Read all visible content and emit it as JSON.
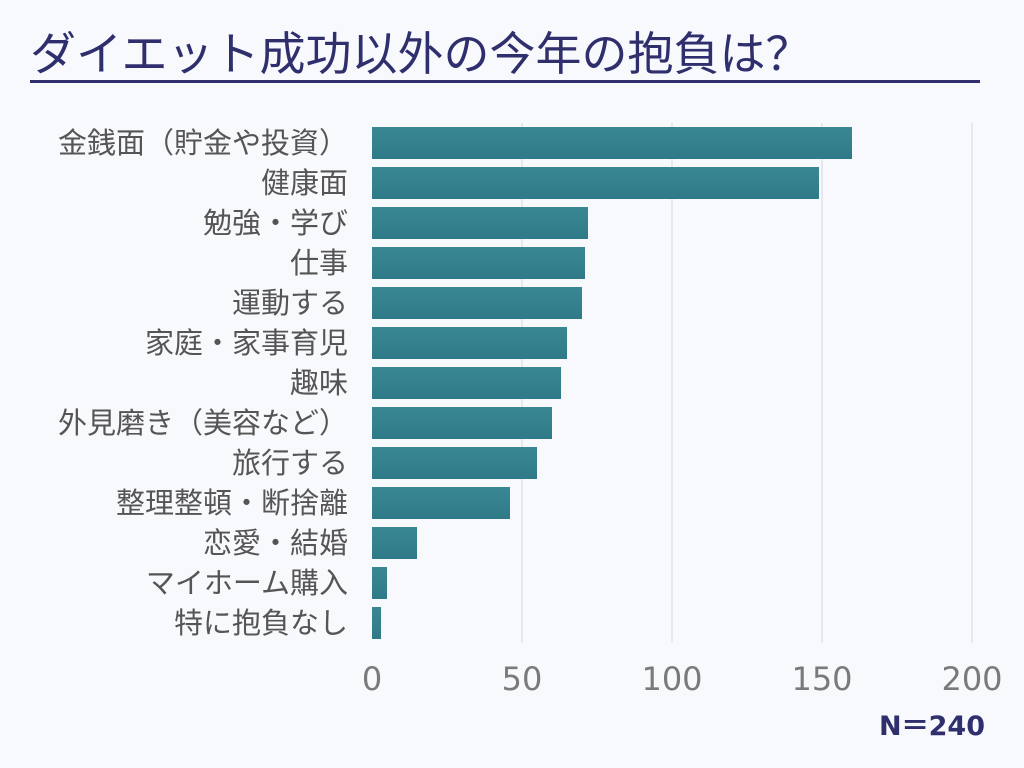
{
  "chart_data": {
    "type": "bar",
    "orientation": "horizontal",
    "title": "ダイエット成功以外の今年の抱負は？",
    "categories": [
      "金銭面（貯金や投資）",
      "健康面",
      "勉強・学び",
      "仕事",
      "運動する",
      "家庭・家事育児",
      "趣味",
      "外見磨き（美容など）",
      "旅行する",
      "整理整頓・断捨離",
      "恋愛・結婚",
      "マイホーム購入",
      "特に抱負なし"
    ],
    "values": [
      160,
      149,
      72,
      71,
      70,
      65,
      63,
      60,
      55,
      46,
      15,
      5,
      3
    ],
    "xlim": [
      0,
      200
    ],
    "xticks": [
      "0",
      "50",
      "100",
      "150",
      "200"
    ],
    "grid": true,
    "bar_color": "#35828f",
    "note": "N＝240"
  }
}
